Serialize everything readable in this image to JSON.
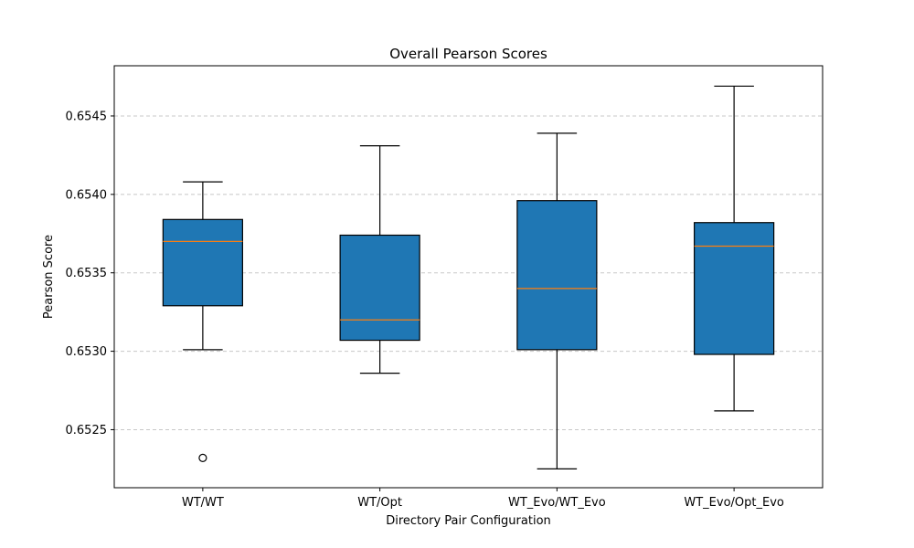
{
  "chart_data": {
    "type": "box",
    "title": "Overall Pearson Scores",
    "xlabel": "Directory Pair Configuration",
    "ylabel": "Pearson Score",
    "ylim": [
      0.65213,
      0.65482
    ],
    "yticks": [
      0.6525,
      0.653,
      0.6535,
      0.654,
      0.6545
    ],
    "ytick_labels": [
      "0.6525",
      "0.6530",
      "0.6535",
      "0.6540",
      "0.6545"
    ],
    "grid": "y-dashed",
    "categories": [
      "WT/WT",
      "WT/Opt",
      "WT_Evo/WT_Evo",
      "WT_Evo/Opt_Evo"
    ],
    "boxes": [
      {
        "category": "WT/WT",
        "whisker_low": 0.65301,
        "q1": 0.65329,
        "median": 0.6537,
        "q3": 0.65384,
        "whisker_high": 0.65408,
        "outliers": [
          0.65232
        ]
      },
      {
        "category": "WT/Opt",
        "whisker_low": 0.65286,
        "q1": 0.65307,
        "median": 0.6532,
        "q3": 0.65374,
        "whisker_high": 0.65431,
        "outliers": []
      },
      {
        "category": "WT_Evo/WT_Evo",
        "whisker_low": 0.65225,
        "q1": 0.65301,
        "median": 0.6534,
        "q3": 0.65396,
        "whisker_high": 0.65439,
        "outliers": []
      },
      {
        "category": "WT_Evo/Opt_Evo",
        "whisker_low": 0.65262,
        "q1": 0.65298,
        "median": 0.65367,
        "q3": 0.65382,
        "whisker_high": 0.65469,
        "outliers": []
      }
    ],
    "colors": {
      "box_fill": "#1f77b4",
      "median": "#ff7f0e",
      "grid": "#c8c8c8",
      "edge": "#000000"
    }
  }
}
